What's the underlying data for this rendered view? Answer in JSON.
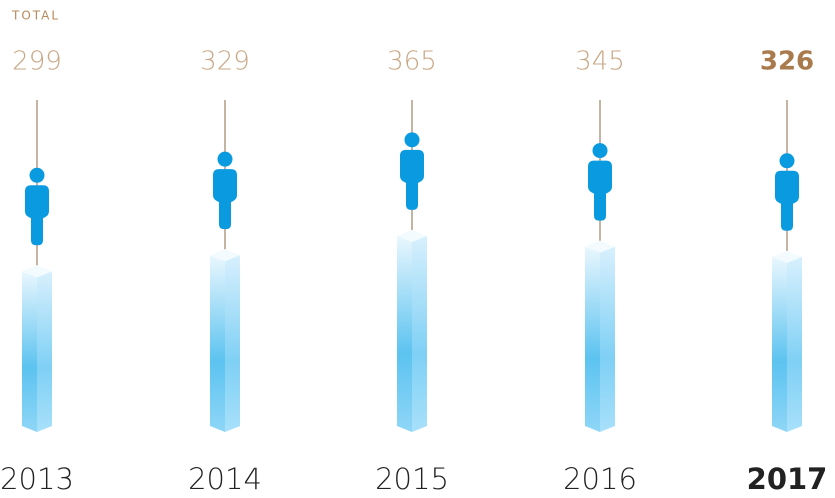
{
  "chart_data": {
    "type": "bar",
    "title": "TOTAL",
    "categories": [
      "2013",
      "2014",
      "2015",
      "2016",
      "2017"
    ],
    "values": [
      299,
      329,
      365,
      345,
      326
    ],
    "color": "#5bc4f1",
    "icon_color": "#0a9ae0",
    "highlight": "2017",
    "ylim": [
      0,
      800
    ]
  }
}
